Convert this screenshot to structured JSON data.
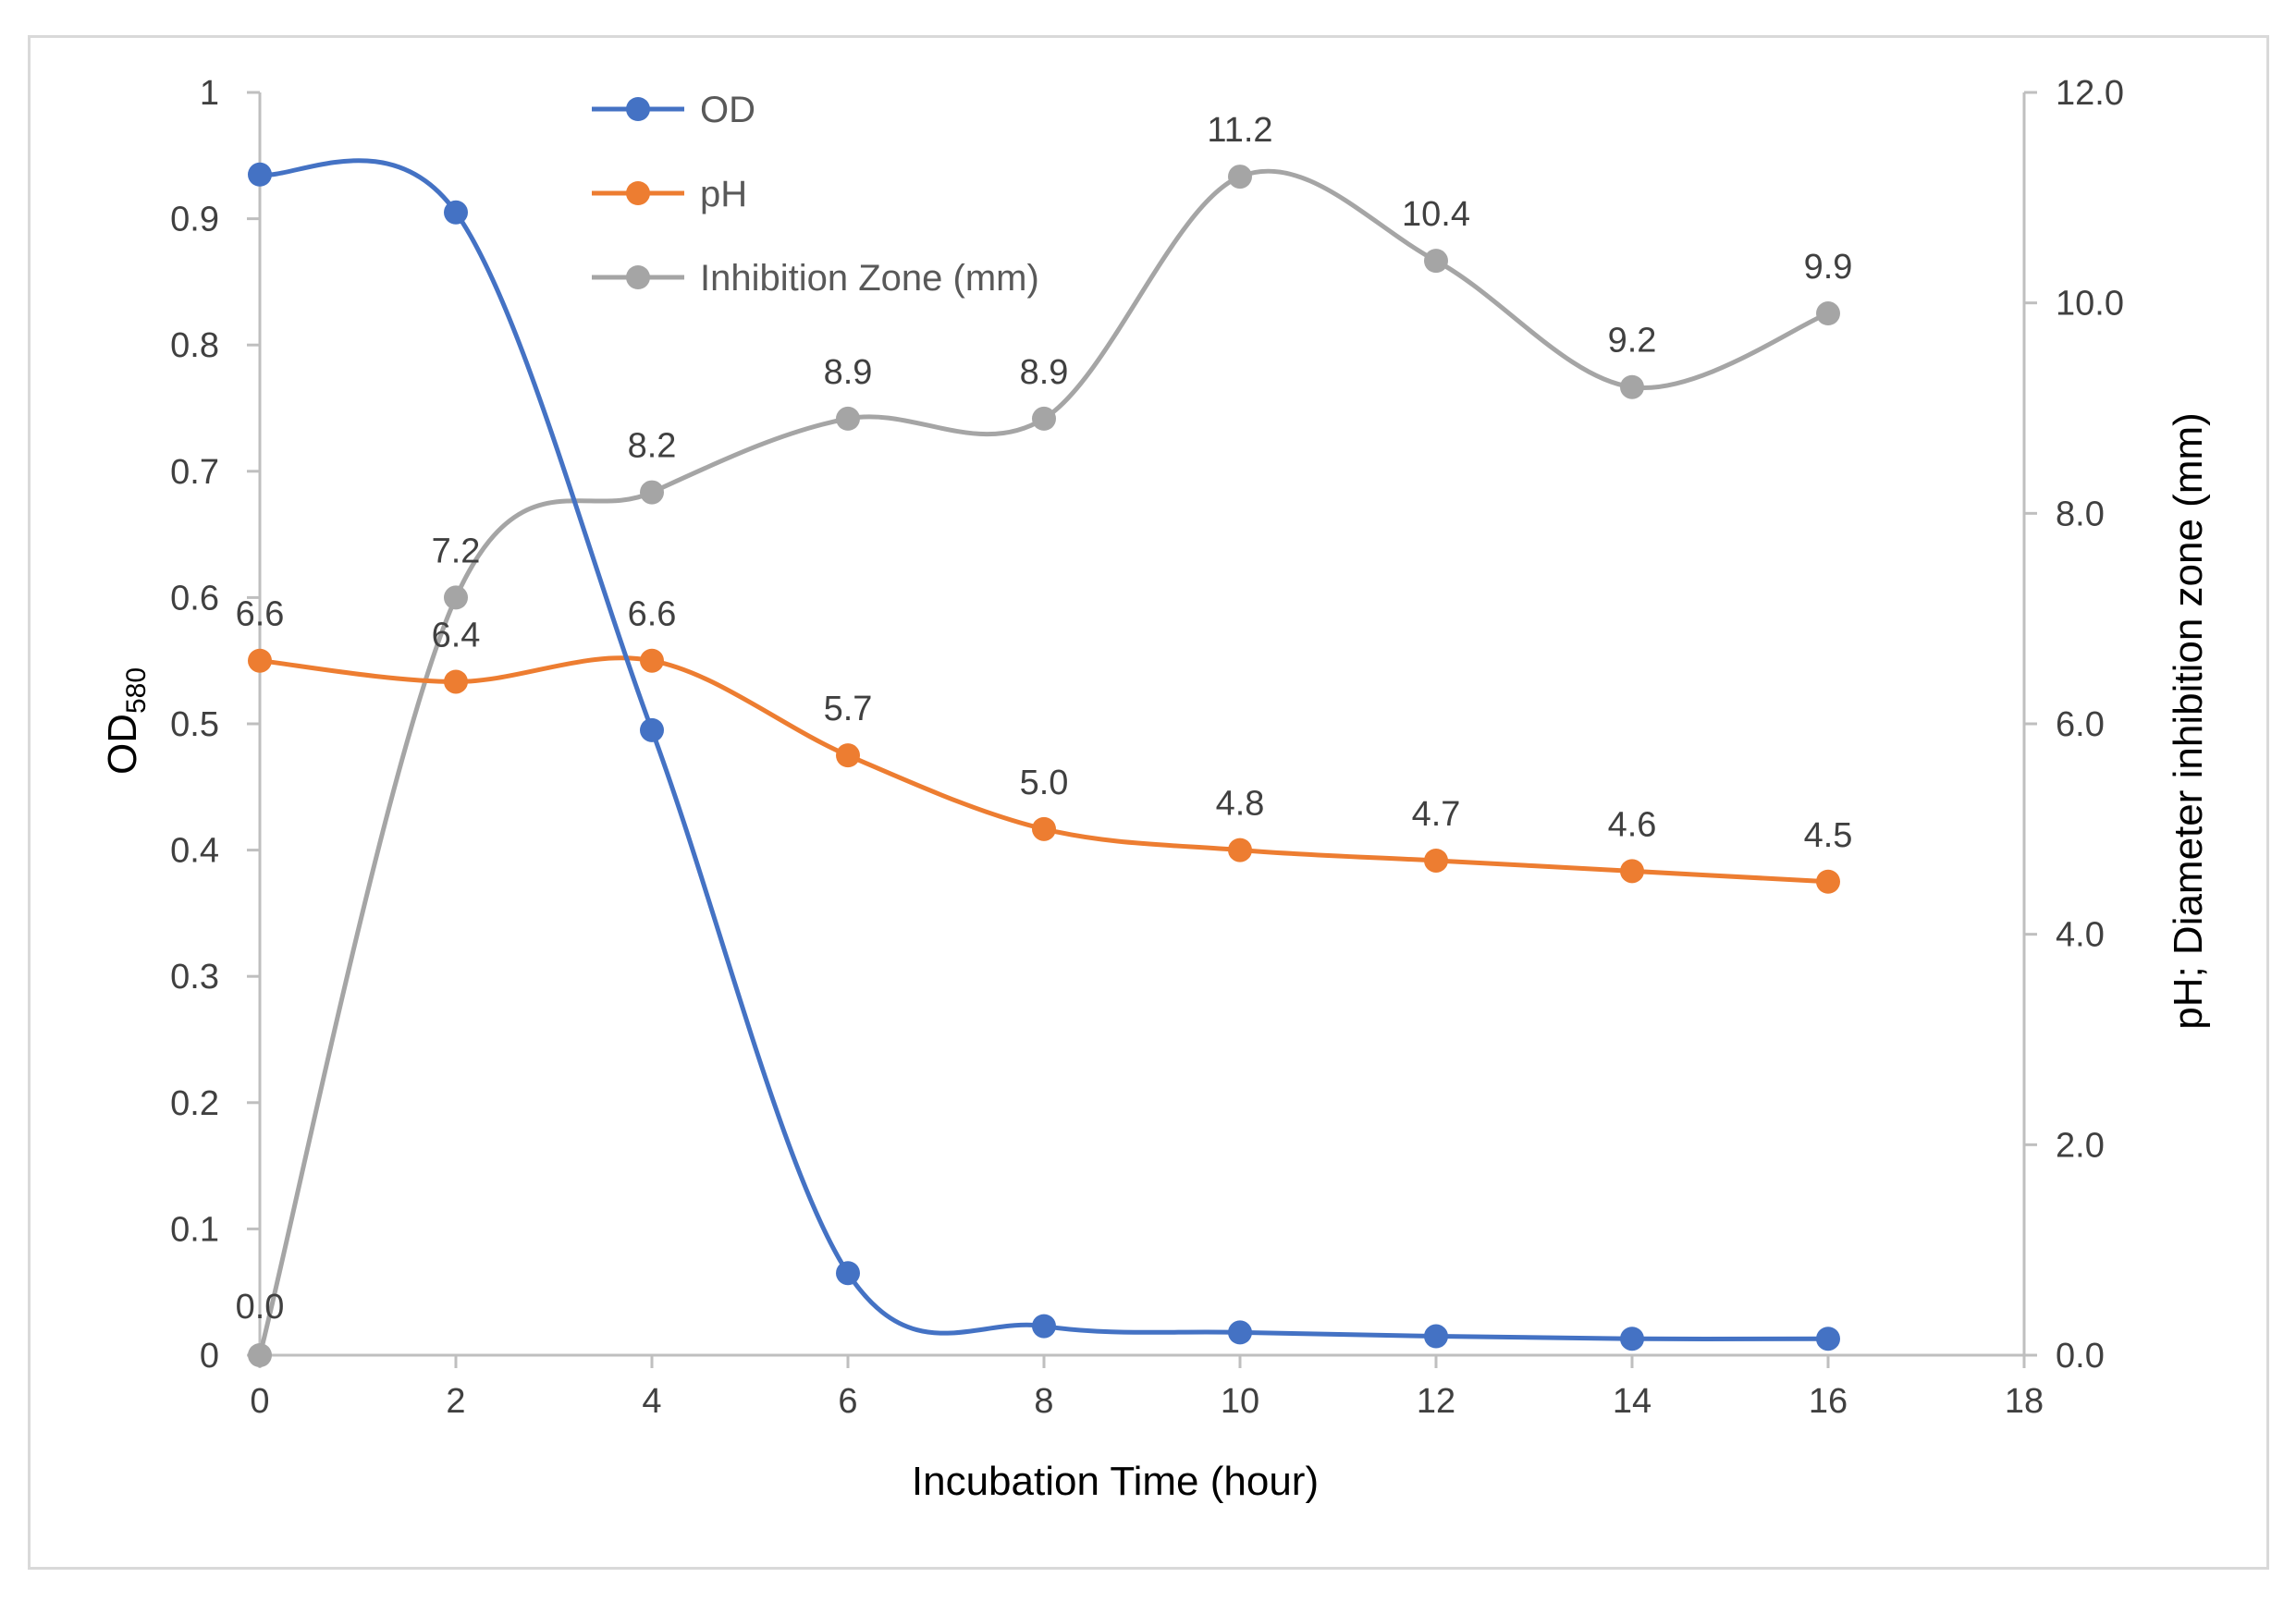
{
  "chart_data": {
    "type": "line",
    "x": [
      0,
      2,
      4,
      6,
      8,
      10,
      12,
      14,
      16
    ],
    "xlabel": "Incubation Time (hour)",
    "xlim": [
      0,
      18
    ],
    "xticks": [
      "0",
      "2",
      "4",
      "6",
      "8",
      "10",
      "12",
      "14",
      "16",
      "18"
    ],
    "ylabel_left_main": "OD",
    "ylabel_left_sub": "580",
    "ylim_left": [
      0,
      1
    ],
    "yticks_left": [
      "0",
      "0.1",
      "0.2",
      "0.3",
      "0.4",
      "0.5",
      "0.6",
      "0.7",
      "0.8",
      "0.9",
      "1"
    ],
    "ylabel_right": "pH; Diameter inhibition zone (mm)",
    "ylim_right": [
      0,
      12
    ],
    "yticks_right": [
      "0.0",
      "2.0",
      "4.0",
      "6.0",
      "8.0",
      "10.0",
      "12.0"
    ],
    "grid": false,
    "legend_position": "top-left",
    "series": [
      {
        "name": "OD",
        "axis": "left",
        "color": "#4472c4",
        "values": [
          0.935,
          0.905,
          0.495,
          0.065,
          0.023,
          0.018,
          0.015,
          0.013,
          0.013
        ],
        "labels": []
      },
      {
        "name": "pH",
        "axis": "right",
        "color": "#ed7d31",
        "values": [
          6.6,
          6.4,
          6.6,
          5.7,
          5.0,
          4.8,
          4.7,
          4.6,
          4.5
        ],
        "labels": [
          "6.6",
          "6.4",
          "6.6",
          "5.7",
          "5.0",
          "4.8",
          "4.7",
          "4.6",
          "4.5"
        ]
      },
      {
        "name": "Inhibition Zone (mm)",
        "axis": "right",
        "color": "#a5a5a5",
        "values": [
          0.0,
          7.2,
          8.2,
          8.9,
          8.9,
          11.2,
          10.4,
          9.2,
          9.9
        ],
        "labels": [
          "0.0",
          "7.2",
          "8.2",
          "8.9",
          "8.9",
          "11.2",
          "10.4",
          "9.2",
          "9.9"
        ]
      }
    ]
  }
}
